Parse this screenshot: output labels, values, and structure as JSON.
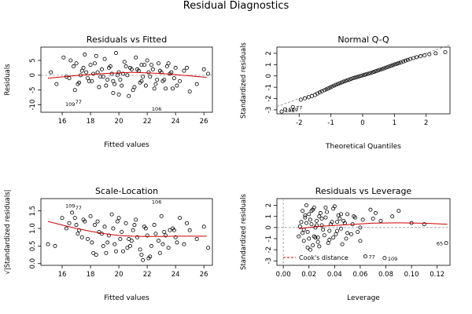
{
  "title": "Residual Diagnostics",
  "chart_data": [
    {
      "type": "scatter",
      "title": "Residuals vs Fitted",
      "xlabel": "Fitted values",
      "ylabel": "Residuals",
      "xlim": [
        14.5,
        26.6
      ],
      "ylim": [
        -12.5,
        9.5
      ],
      "xticks": [
        16,
        18,
        20,
        22,
        24,
        26
      ],
      "yticks": [
        -10,
        -5,
        0,
        5
      ],
      "tick_labels_x": [
        "16",
        "18",
        "20",
        "22",
        "24",
        "26"
      ],
      "tick_labels_y": [
        "-10",
        "-5",
        "0",
        "5"
      ],
      "smoother": {
        "x": [
          15.0,
          17.0,
          19.0,
          21.0,
          23.0,
          25.0,
          26.2
        ],
        "y": [
          -1.0,
          -0.1,
          0.6,
          1.0,
          0.6,
          -0.2,
          -0.7
        ]
      },
      "labeled_points": [
        {
          "label": "109",
          "x": 16.0,
          "y": -9.6
        },
        {
          "label": "77",
          "x": 16.7,
          "y": -8.8
        },
        {
          "label": "106",
          "x": 22.1,
          "y": -11.2
        }
      ],
      "series": [
        {
          "x": [
            15.2,
            15.6,
            16.1,
            16.3,
            16.6,
            16.8,
            17.0,
            17.2,
            17.4,
            17.6,
            17.8,
            18.0,
            18.2,
            18.4,
            18.6,
            18.8,
            19.0,
            19.2,
            19.4,
            19.6,
            19.8,
            20.0,
            20.2,
            20.4,
            20.6,
            20.8,
            21.0,
            21.2,
            21.4,
            21.6,
            21.8,
            22.0,
            22.2,
            22.4,
            22.6,
            22.8,
            23.0,
            23.2,
            23.4,
            23.6,
            23.8,
            24.0,
            24.3,
            24.6,
            25.0,
            25.5,
            26.0,
            26.3,
            16.5,
            17.1,
            17.5,
            18.1,
            18.5,
            19.1,
            19.5,
            20.1,
            20.5,
            21.1,
            21.5,
            22.1,
            22.5,
            23.1,
            23.5,
            24.1,
            16.9,
            17.3,
            17.9,
            18.3,
            18.7,
            19.3,
            19.7,
            20.3,
            20.7,
            21.3,
            21.7,
            22.3,
            22.7,
            23.3,
            23.7,
            18.9,
            19.9,
            20.9,
            21.9,
            22.9,
            17.7,
            19.6,
            21.6,
            23.9,
            24.8,
            20.0
          ],
          "y": [
            1.0,
            -3.0,
            6.0,
            -0.5,
            5.0,
            3.0,
            4.0,
            -2.5,
            1.5,
            7.0,
            -1.0,
            3.5,
            0.5,
            6.5,
            -4.0,
            2.0,
            5.5,
            -1.5,
            3.0,
            -6.0,
            7.5,
            1.0,
            -3.5,
            4.5,
            0.0,
            2.5,
            -5.0,
            6.0,
            1.5,
            -2.0,
            3.5,
            5.0,
            -0.5,
            2.0,
            -3.0,
            4.0,
            1.0,
            -1.5,
            3.0,
            0.5,
            -4.5,
            2.5,
            -2.0,
            1.5,
            -5.5,
            -3.0,
            2.0,
            0.5,
            -1.0,
            -3.0,
            2.5,
            -2.0,
            1.0,
            -3.5,
            0.5,
            -1.5,
            3.0,
            -4.0,
            -2.5,
            1.0,
            -4.5,
            -2.0,
            4.0,
            -3.5,
            -5.0,
            0.0,
            -2.0,
            4.0,
            -0.5,
            2.5,
            -3.0,
            0.5,
            -7.0,
            2.0,
            -0.5,
            3.5,
            -1.5,
            -4.5,
            1.0,
            -0.5,
            0.0,
            2.0,
            -3.5,
            1.5,
            1.0,
            -2.0,
            3.5,
            -1.0,
            2.5,
            -6.5
          ]
        }
      ]
    },
    {
      "type": "scatter",
      "title": "Normal Q-Q",
      "xlabel": "Theoretical Quantiles",
      "ylabel": "Standardized residuals",
      "xlim": [
        -2.7,
        2.75
      ],
      "ylim": [
        -3.35,
        2.55
      ],
      "xticks": [
        -2,
        -1,
        0,
        1,
        2
      ],
      "yticks": [
        -3,
        -2,
        -1,
        0,
        1,
        2
      ],
      "tick_labels_x": [
        "-2",
        "-1",
        "0",
        "1",
        "2"
      ],
      "tick_labels_y": [
        "-3",
        "-2",
        "-1",
        "0",
        "1",
        "2"
      ],
      "qq_line": {
        "x": [
          -2.7,
          2.75
        ],
        "y": [
          -2.7,
          2.75
        ]
      },
      "labeled_points": [
        {
          "label": "109",
          "x": -2.44,
          "y": -2.95
        },
        {
          "label": "77",
          "x": -2.2,
          "y": -2.75
        },
        {
          "label": "106",
          "x": -2.55,
          "y": -3.15
        }
      ],
      "series": [
        {
          "x": [
            -2.55,
            -2.44,
            -2.2,
            -1.95,
            -1.82,
            -1.7,
            -1.6,
            -1.5,
            -1.42,
            -1.35,
            -1.28,
            -1.2,
            -1.14,
            -1.08,
            -1.02,
            -0.96,
            -0.9,
            -0.84,
            -0.78,
            -0.72,
            -0.66,
            -0.6,
            -0.54,
            -0.48,
            -0.42,
            -0.36,
            -0.3,
            -0.24,
            -0.18,
            -0.12,
            -0.06,
            0.0,
            0.06,
            0.12,
            0.18,
            0.24,
            0.3,
            0.36,
            0.42,
            0.48,
            0.54,
            0.6,
            0.66,
            0.72,
            0.78,
            0.84,
            0.9,
            0.96,
            1.02,
            1.08,
            1.14,
            1.2,
            1.28,
            1.35,
            1.42,
            1.5,
            1.6,
            1.7,
            1.82,
            1.95,
            2.1,
            2.3,
            2.6
          ],
          "y": [
            -3.15,
            -2.95,
            -2.75,
            -2.1,
            -1.98,
            -1.88,
            -1.78,
            -1.68,
            -1.55,
            -1.45,
            -1.35,
            -1.26,
            -1.18,
            -1.1,
            -1.02,
            -0.94,
            -0.86,
            -0.78,
            -0.71,
            -0.64,
            -0.57,
            -0.5,
            -0.44,
            -0.38,
            -0.32,
            -0.26,
            -0.2,
            -0.15,
            -0.1,
            -0.05,
            0.0,
            0.05,
            0.1,
            0.15,
            0.2,
            0.25,
            0.3,
            0.36,
            0.42,
            0.48,
            0.54,
            0.6,
            0.66,
            0.72,
            0.78,
            0.84,
            0.9,
            0.96,
            1.02,
            1.08,
            1.14,
            1.2,
            1.28,
            1.35,
            1.42,
            1.5,
            1.58,
            1.66,
            1.74,
            1.82,
            1.92,
            2.0,
            2.1
          ]
        }
      ]
    },
    {
      "type": "scatter",
      "title": "Scale-Location",
      "xlabel": "Fitted values",
      "ylabel": "√|Standardized residuals|",
      "xlim": [
        14.5,
        26.6
      ],
      "ylim": [
        -0.05,
        1.85
      ],
      "xticks": [
        16,
        18,
        20,
        22,
        24,
        26
      ],
      "yticks": [
        0.0,
        0.5,
        1.0,
        1.5
      ],
      "tick_labels_x": [
        "16",
        "18",
        "20",
        "22",
        "24",
        "26"
      ],
      "tick_labels_y": [
        "0.0",
        "0.5",
        "1.0",
        "1.5"
      ],
      "smoother": {
        "x": [
          15.0,
          16.0,
          17.0,
          18.0,
          19.0,
          20.0,
          21.0,
          22.0,
          23.0,
          24.0,
          26.2
        ],
        "y": [
          1.2,
          1.1,
          1.0,
          0.92,
          0.85,
          0.8,
          0.78,
          0.77,
          0.77,
          0.78,
          0.78
        ]
      },
      "labeled_points": [
        {
          "label": "109",
          "x": 16.0,
          "y": 1.66
        },
        {
          "label": "77",
          "x": 16.7,
          "y": 1.6
        },
        {
          "label": "106",
          "x": 22.1,
          "y": 1.77
        }
      ],
      "series": [
        {
          "x": [
            15.0,
            15.5,
            16.0,
            16.3,
            16.7,
            17.0,
            17.2,
            17.5,
            17.8,
            18.0,
            18.2,
            18.5,
            18.8,
            19.0,
            19.2,
            19.5,
            19.8,
            20.0,
            20.2,
            20.5,
            20.8,
            21.0,
            21.2,
            21.5,
            21.8,
            22.0,
            22.2,
            22.5,
            22.8,
            23.0,
            23.2,
            23.5,
            23.8,
            24.0,
            24.3,
            24.6,
            25.0,
            25.5,
            26.0,
            26.3,
            16.5,
            17.1,
            17.6,
            18.1,
            18.6,
            19.1,
            19.6,
            20.1,
            20.6,
            21.1,
            21.6,
            22.1,
            22.6,
            23.1,
            23.6,
            24.1,
            16.9,
            17.4,
            18.3,
            18.9,
            19.3,
            19.9,
            20.3,
            20.9,
            21.3,
            21.9,
            22.3,
            22.9,
            23.3,
            23.9,
            18.4,
            19.7,
            21.7,
            24.8,
            20.7
          ],
          "y": [
            0.55,
            0.5,
            1.3,
            1.0,
            1.45,
            1.1,
            0.95,
            1.25,
            0.7,
            1.35,
            0.3,
            1.2,
            0.85,
            1.05,
            0.6,
            1.4,
            0.35,
            1.3,
            0.9,
            1.15,
            0.5,
            0.95,
            1.25,
            0.4,
            1.05,
            0.8,
            0.2,
            1.1,
            0.65,
            1.35,
            0.9,
            0.45,
            1.0,
            0.75,
            1.3,
            0.55,
            0.95,
            0.7,
            1.05,
            0.45,
            1.15,
            0.85,
            1.2,
            0.6,
            0.9,
            0.3,
            1.0,
            0.7,
            0.45,
            1.1,
            0.25,
            0.15,
            0.85,
            0.55,
            0.95,
            0.6,
            1.3,
            0.75,
            1.1,
            0.5,
            0.8,
            1.2,
            0.35,
            0.65,
            0.75,
            1.0,
            0.5,
            0.3,
            0.8,
            0.95,
            0.25,
            0.55,
            0.1,
            1.15,
            0.7
          ]
        }
      ]
    },
    {
      "type": "scatter",
      "title": "Residuals vs Leverage",
      "xlabel": "Leverage",
      "ylabel": "Standardized residuals",
      "xlim": [
        -0.005,
        0.13
      ],
      "ylim": [
        -3.4,
        2.6
      ],
      "xticks": [
        0.0,
        0.02,
        0.04,
        0.06,
        0.08,
        0.1,
        0.12
      ],
      "yticks": [
        -3,
        -2,
        -1,
        0,
        1,
        2
      ],
      "tick_labels_x": [
        "0.00",
        "0.02",
        "0.04",
        "0.06",
        "0.08",
        "0.10",
        "0.12"
      ],
      "tick_labels_y": [
        "-3",
        "-2",
        "-1",
        "0",
        "1",
        "2"
      ],
      "legend": {
        "position": "bottom-left",
        "label": "Cook's distance"
      },
      "smoother": {
        "x": [
          0.012,
          0.02,
          0.03,
          0.05,
          0.07,
          0.09,
          0.11,
          0.128
        ],
        "y": [
          -0.1,
          0.0,
          0.12,
          0.25,
          0.4,
          0.42,
          0.38,
          0.3
        ]
      },
      "labeled_points": [
        {
          "label": "77",
          "x": 0.064,
          "y": -2.6
        },
        {
          "label": "109",
          "x": 0.079,
          "y": -2.75
        },
        {
          "label": "65",
          "x": 0.127,
          "y": -1.4
        }
      ],
      "series": [
        {
          "x": [
            0.012,
            0.014,
            0.015,
            0.016,
            0.017,
            0.018,
            0.019,
            0.02,
            0.021,
            0.022,
            0.023,
            0.024,
            0.025,
            0.026,
            0.027,
            0.028,
            0.03,
            0.032,
            0.034,
            0.036,
            0.038,
            0.04,
            0.042,
            0.044,
            0.046,
            0.048,
            0.05,
            0.053,
            0.056,
            0.06,
            0.064,
            0.068,
            0.072,
            0.076,
            0.079,
            0.085,
            0.09,
            0.1,
            0.11,
            0.127,
            0.013,
            0.015,
            0.017,
            0.019,
            0.021,
            0.023,
            0.025,
            0.027,
            0.029,
            0.031,
            0.033,
            0.035,
            0.037,
            0.039,
            0.041,
            0.043,
            0.045,
            0.047,
            0.049,
            0.055,
            0.058,
            0.062,
            0.016,
            0.018,
            0.02,
            0.022,
            0.024,
            0.026,
            0.028,
            0.03,
            0.033,
            0.036,
            0.039,
            0.042,
            0.045,
            0.05,
            0.054,
            0.06,
            0.07
          ],
          "y": [
            -0.8,
            0.5,
            1.5,
            -1.2,
            0.9,
            2.0,
            -0.4,
            1.2,
            -2.0,
            0.3,
            -1.6,
            1.8,
            -0.9,
            0.6,
            -1.3,
            1.0,
            0.2,
            -0.7,
            1.4,
            -1.1,
            0.5,
            1.9,
            -0.3,
            0.8,
            -1.5,
            0.4,
            1.2,
            -0.6,
            0.9,
            0.0,
            -2.6,
            1.6,
            1.3,
            0.6,
            -2.75,
            1.0,
            1.5,
            0.4,
            0.3,
            -1.4,
            0.1,
            -0.5,
            1.1,
            -1.8,
            0.7,
            1.6,
            0.0,
            -0.9,
            1.3,
            -0.2,
            0.9,
            -1.4,
            0.3,
            1.7,
            -0.6,
            1.1,
            -0.1,
            0.6,
            -1.0,
            1.0,
            -0.4,
            0.7,
            -0.2,
            0.4,
            -1.0,
            1.5,
            -0.8,
            0.2,
            -1.7,
            0.8,
            1.8,
            -0.3,
            -0.9,
            0.5,
            1.2,
            -0.5,
            0.3,
            -1.2,
            0.8
          ]
        }
      ]
    }
  ],
  "colors": {
    "points": "#000000",
    "smoother": "#d00000",
    "cooks": "#d00000",
    "refline": "#999999"
  }
}
